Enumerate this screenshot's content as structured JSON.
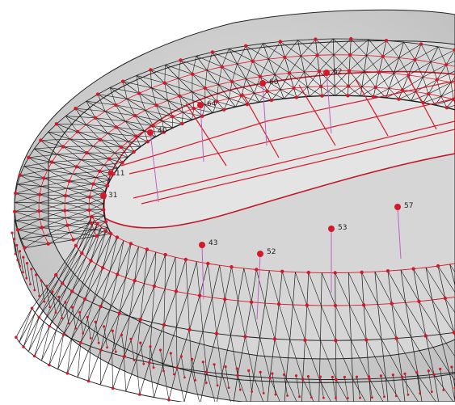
{
  "figure": {
    "colors": {
      "background": "#ffffff",
      "surface": "#cfcfcf",
      "surface_light": "#dcdcdc",
      "mesh": "#1a1a1a",
      "node": "#d21a2b",
      "tether": "#c060c0",
      "label": "#222222"
    },
    "node_labels": [
      {
        "id": "n1",
        "text": "11"
      },
      {
        "id": "n2",
        "text": "31"
      },
      {
        "id": "n3",
        "text": "40"
      },
      {
        "id": "n4",
        "text": "43"
      },
      {
        "id": "n5",
        "text": "52"
      },
      {
        "id": "n6",
        "text": "53"
      },
      {
        "id": "n7",
        "text": "57"
      },
      {
        "id": "n8",
        "text": "60"
      },
      {
        "id": "n9",
        "text": "62"
      },
      {
        "id": "n10",
        "text": "64"
      }
    ]
  }
}
